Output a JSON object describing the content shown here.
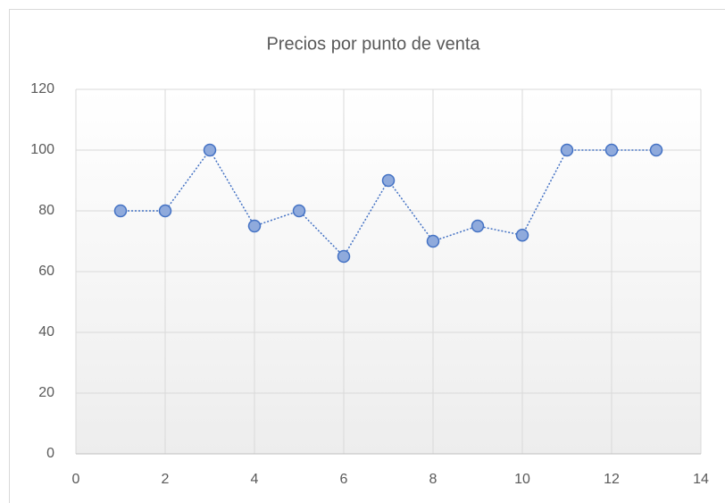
{
  "chart_data": {
    "type": "scatter",
    "title": "Precios por punto de venta",
    "x": [
      1,
      2,
      3,
      4,
      5,
      6,
      7,
      8,
      9,
      10,
      11,
      12,
      13
    ],
    "values": [
      80,
      80,
      100,
      75,
      80,
      65,
      90,
      70,
      75,
      72,
      100,
      100,
      100
    ],
    "color": "#4472c4",
    "marker_fill": "#8faadc",
    "connect_points": true,
    "line_style": "dotted",
    "xlim": [
      0,
      14
    ],
    "xticks": [
      0,
      2,
      4,
      6,
      8,
      10,
      12,
      14
    ],
    "ylim": [
      0,
      120
    ],
    "yticks": [
      0,
      20,
      40,
      60,
      80,
      100,
      120
    ],
    "grid": true
  }
}
